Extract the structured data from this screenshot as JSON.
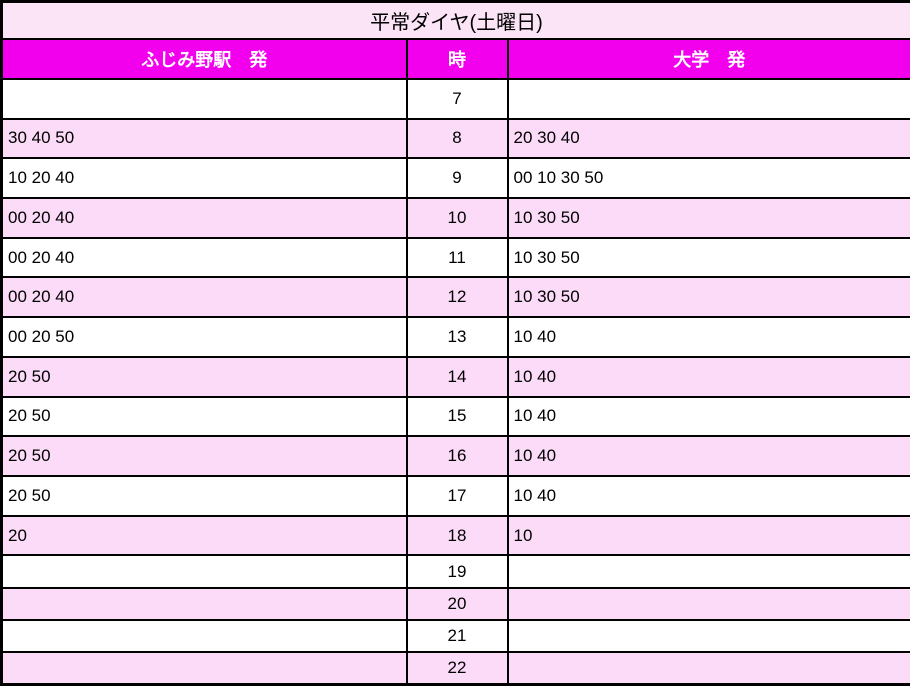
{
  "title": "平常ダイヤ(土曜日)",
  "colors": {
    "header_bg": "#F200EE",
    "header_text": "#FFFFFF",
    "title_bg": "#FAE4F6",
    "row_alt_bg": "#FCDBF8",
    "row_bg": "#FFFFFF",
    "border": "#000000"
  },
  "columns": {
    "station": "ふじみ野駅　発",
    "hour": "時",
    "university": "大学　発"
  },
  "rows": [
    {
      "station": "",
      "hour": "7",
      "university": ""
    },
    {
      "station": "30 40 50",
      "hour": "8",
      "university": "20 30 40"
    },
    {
      "station": "10 20 40",
      "hour": "9",
      "university": "00 10 30 50"
    },
    {
      "station": "00 20 40",
      "hour": "10",
      "university": "10 30 50"
    },
    {
      "station": "00 20 40",
      "hour": "11",
      "university": "10 30 50"
    },
    {
      "station": "00 20 40",
      "hour": "12",
      "university": "10 30 50"
    },
    {
      "station": "00 20 50",
      "hour": "13",
      "university": "10 40"
    },
    {
      "station": "20 50",
      "hour": "14",
      "university": "10 40"
    },
    {
      "station": "20 50",
      "hour": "15",
      "university": "10 40"
    },
    {
      "station": "20 50",
      "hour": "16",
      "university": "10 40"
    },
    {
      "station": "20 50",
      "hour": "17",
      "university": "10 40"
    },
    {
      "station": "20",
      "hour": "18",
      "university": "10"
    },
    {
      "station": "",
      "hour": "19",
      "university": ""
    },
    {
      "station": "",
      "hour": "20",
      "university": ""
    },
    {
      "station": "",
      "hour": "21",
      "university": ""
    },
    {
      "station": "",
      "hour": "22",
      "university": ""
    }
  ]
}
